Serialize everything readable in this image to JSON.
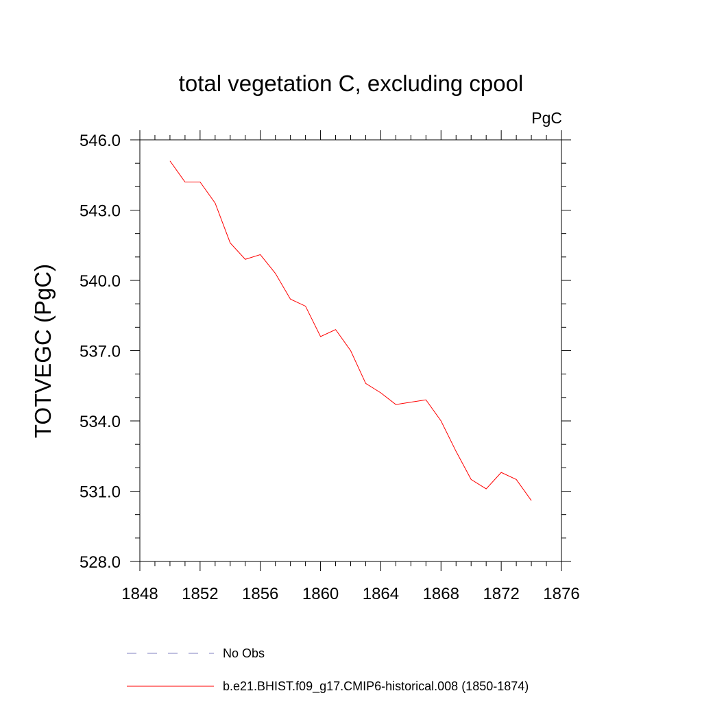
{
  "chart_data": {
    "type": "line",
    "title": "total vegetation C, excluding cpool",
    "units": "PgC",
    "xlabel": "",
    "ylabel": "TOTVEGC  (PgC)",
    "xlim": [
      1848,
      1876
    ],
    "ylim": [
      528,
      546
    ],
    "xticks": [
      1848,
      1852,
      1856,
      1860,
      1864,
      1868,
      1872,
      1876
    ],
    "xtick_labels": [
      "1848",
      "1852",
      "1856",
      "1860",
      "1864",
      "1868",
      "1872",
      "1876"
    ],
    "yticks": [
      528,
      531,
      534,
      537,
      540,
      543,
      546
    ],
    "ytick_labels": [
      "528.0",
      "531.0",
      "534.0",
      "537.0",
      "540.0",
      "543.0",
      "546.0"
    ],
    "grid": false,
    "legend_position": "bottom",
    "series": [
      {
        "name": "b.e21.BHIST.f09_g17.CMIP6-historical.008 (1850-1874)",
        "color": "#ff0000",
        "style": "solid",
        "x": [
          1850,
          1851,
          1852,
          1853,
          1854,
          1855,
          1856,
          1857,
          1858,
          1859,
          1860,
          1861,
          1862,
          1863,
          1864,
          1865,
          1866,
          1867,
          1868,
          1869,
          1870,
          1871,
          1872,
          1873,
          1874
        ],
        "y": [
          545.1,
          544.2,
          544.2,
          543.3,
          541.6,
          540.9,
          541.1,
          540.3,
          539.2,
          538.9,
          537.6,
          537.9,
          537.0,
          535.6,
          535.2,
          534.7,
          534.8,
          534.9,
          534.0,
          532.7,
          531.5,
          531.1,
          531.8,
          531.5,
          530.6
        ]
      }
    ],
    "legend": [
      {
        "label": "No Obs",
        "color": "#8080c0",
        "style": "dashed"
      },
      {
        "label": "b.e21.BHIST.f09_g17.CMIP6-historical.008 (1850-1874)",
        "color": "#ff0000",
        "style": "solid"
      }
    ]
  }
}
